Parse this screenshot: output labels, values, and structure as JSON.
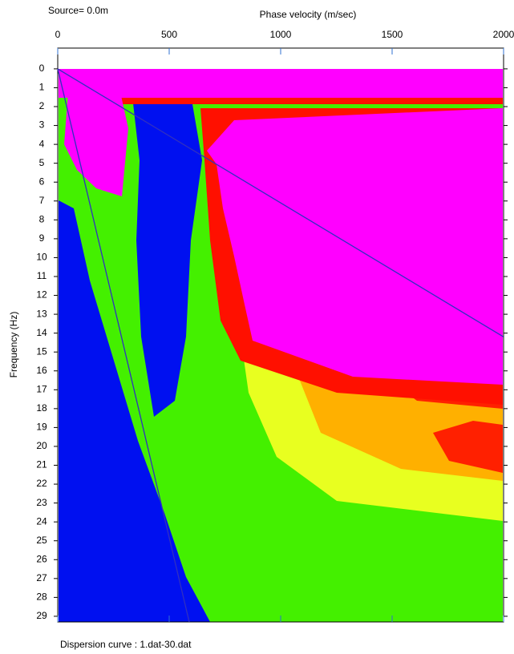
{
  "chart_data": {
    "type": "line",
    "title": "Source=  0.0m",
    "x_label": "Phase velocity (m/sec)",
    "y_label": "Frequency (Hz)",
    "caption": "Dispersion curve : 1.dat-30.dat",
    "xlim": [
      0,
      2000
    ],
    "xticks": [
      0,
      500,
      1000,
      1500,
      2000
    ],
    "ylim": [
      -1.1,
      29.3
    ],
    "y_inverted": true,
    "yticks": [
      0,
      1,
      2,
      3,
      4,
      5,
      6,
      7,
      8,
      9,
      10,
      11,
      12,
      13,
      14,
      15,
      16,
      17,
      18,
      19,
      20,
      21,
      22,
      23,
      24,
      25,
      26,
      27,
      28,
      29
    ],
    "series": [
      {
        "color": "#3030c0",
        "x": [
          0,
          2000
        ],
        "values": [
          0,
          14.2
        ]
      },
      {
        "color": "#3030c0",
        "x": [
          0,
          590
        ],
        "values": [
          0,
          29.3
        ]
      }
    ]
  }
}
